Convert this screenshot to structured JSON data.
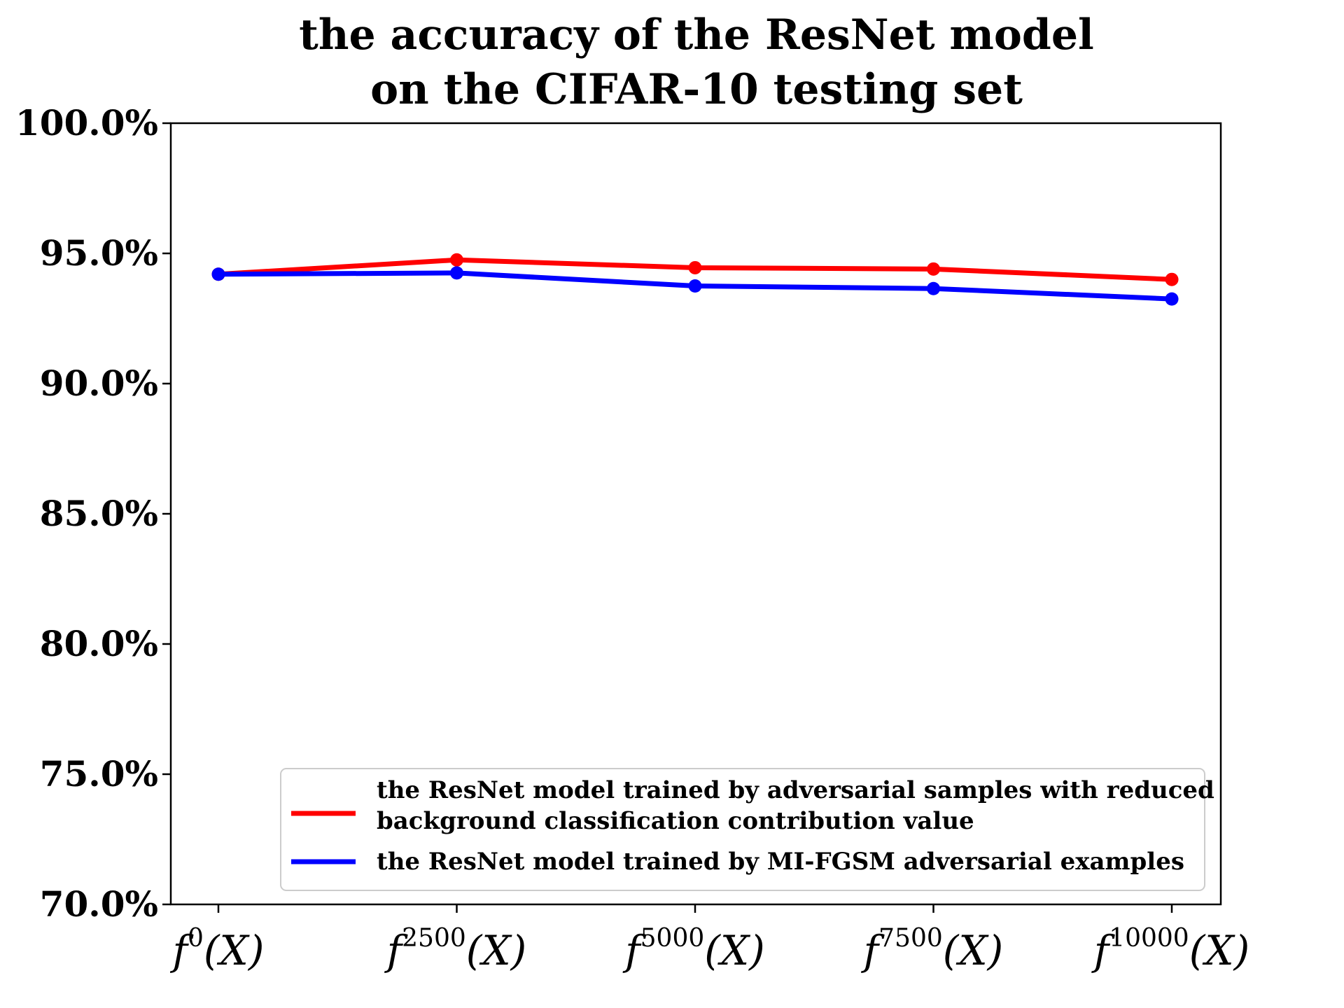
{
  "chart_data": {
    "type": "line",
    "title": [
      "the accuracy of the ResNet model",
      "on the CIFAR-10 testing set"
    ],
    "xlabel": "",
    "ylabel": "",
    "categories": [
      {
        "base": "f",
        "sup": "0",
        "arg": "(X)"
      },
      {
        "base": "f",
        "sup": "2500",
        "arg": "(X)"
      },
      {
        "base": "f",
        "sup": "5000",
        "arg": "(X)"
      },
      {
        "base": "f",
        "sup": "7500",
        "arg": "(X)"
      },
      {
        "base": "f",
        "sup": "10000",
        "arg": "(X)"
      }
    ],
    "ylim": [
      70,
      100
    ],
    "yticks": [
      70,
      75,
      80,
      85,
      90,
      95,
      100
    ],
    "ytick_labels": [
      "70.0%",
      "75.0%",
      "80.0%",
      "85.0%",
      "90.0%",
      "95.0%",
      "100.0%"
    ],
    "grid": false,
    "legend_position": "lower-right",
    "series": [
      {
        "name": "the ResNet model trained by adversarial samples with reduced background classification contribution value",
        "legend_lines": [
          "the ResNet model trained by adversarial samples with reduced",
          "background classification contribution value"
        ],
        "color": "#ff0000",
        "values": [
          94.2,
          94.75,
          94.45,
          94.4,
          94.0
        ]
      },
      {
        "name": "the ResNet model trained by MI-FGSM adversarial examples",
        "legend_lines": [
          "the ResNet model trained by MI-FGSM adversarial examples"
        ],
        "color": "#0000ff",
        "values": [
          94.2,
          94.25,
          93.75,
          93.65,
          93.25
        ]
      }
    ]
  }
}
